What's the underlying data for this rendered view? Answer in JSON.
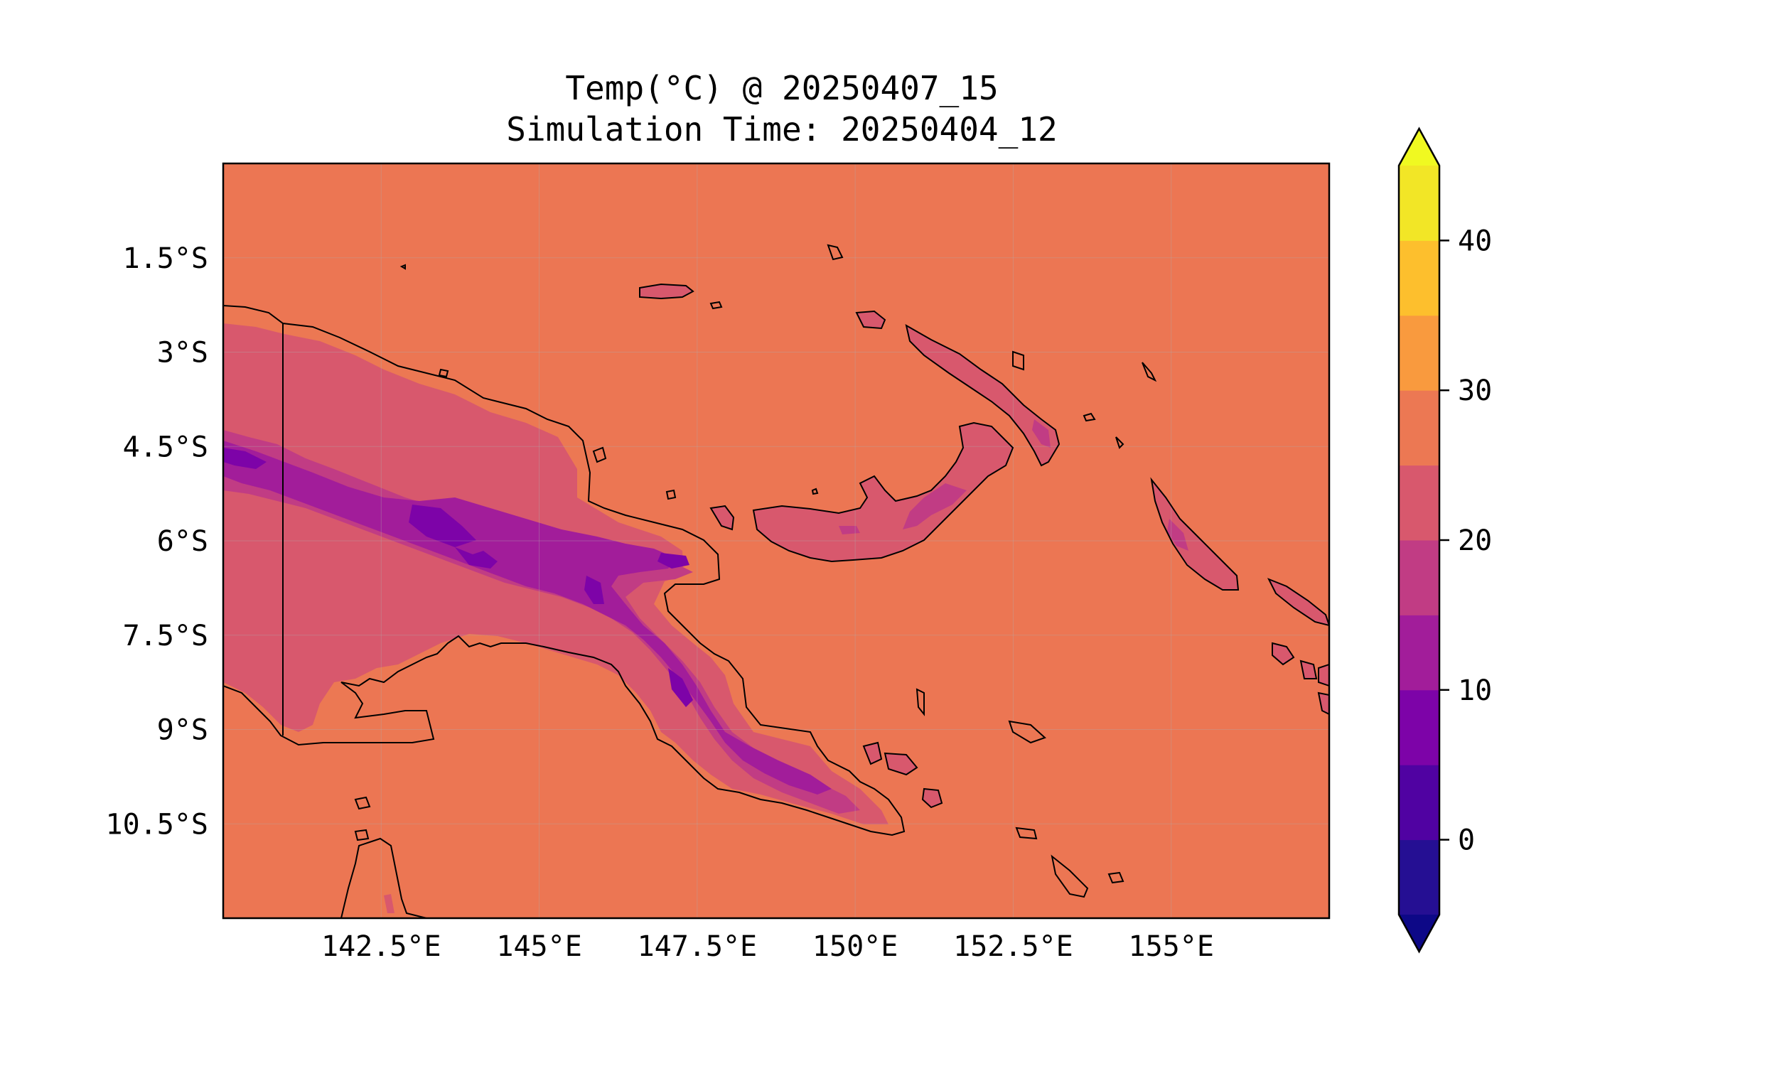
{
  "title_line1": "Temp(°C) @ 20250407_15",
  "title_line2": "Simulation Time: 20250404_12",
  "map": {
    "lon_range": [
      140.0,
      157.5
    ],
    "lat_range": [
      -12.0,
      0.0
    ],
    "grid": true,
    "lon_ticks": [
      {
        "value": 142.5,
        "label": "142.5°E"
      },
      {
        "value": 145.0,
        "label": "145°E"
      },
      {
        "value": 147.5,
        "label": "147.5°E"
      },
      {
        "value": 150.0,
        "label": "150°E"
      },
      {
        "value": 152.5,
        "label": "152.5°E"
      },
      {
        "value": 155.0,
        "label": "155°E"
      }
    ],
    "lat_ticks": [
      {
        "value": -1.5,
        "label": "1.5°S"
      },
      {
        "value": -3.0,
        "label": "3°S"
      },
      {
        "value": -4.5,
        "label": "4.5°S"
      },
      {
        "value": -6.0,
        "label": "6°S"
      },
      {
        "value": -7.5,
        "label": "7.5°S"
      },
      {
        "value": -9.0,
        "label": "9°S"
      },
      {
        "value": -10.5,
        "label": "10.5°S"
      }
    ]
  },
  "colorbar": {
    "min": -5,
    "max": 45,
    "extend": "both",
    "levels": [
      -5,
      0,
      5,
      10,
      15,
      20,
      25,
      30,
      35,
      40,
      45
    ],
    "colors": [
      "#250f93",
      "#5002a2",
      "#7d03a8",
      "#a21d9a",
      "#c13c84",
      "#d8586d",
      "#ec7853",
      "#f99a3e",
      "#fdbf2d",
      "#f2e626"
    ],
    "under_color": "#0d0887",
    "over_color": "#f0f921",
    "ticks": [
      {
        "value": 0,
        "label": "0"
      },
      {
        "value": 10,
        "label": "10"
      },
      {
        "value": 20,
        "label": "20"
      },
      {
        "value": 30,
        "label": "30"
      },
      {
        "value": 40,
        "label": "40"
      }
    ]
  },
  "fill_colors": {
    "ocean": "#ec7653",
    "band_25_30": "#ec7853",
    "band_20_25": "#d8586d",
    "band_15_20": "#c13c84",
    "band_10_15": "#a21d9a",
    "band_5_10": "#7d03a8"
  }
}
